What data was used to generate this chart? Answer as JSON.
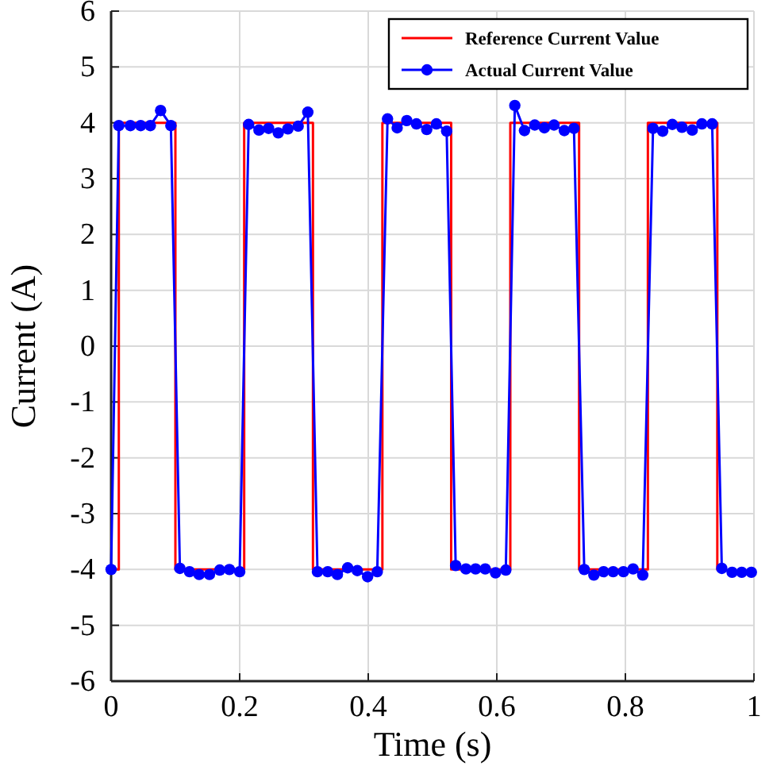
{
  "chart_data": {
    "type": "line",
    "xlabel": "Time (s)",
    "ylabel": "Current (A)",
    "xlim": [
      0,
      1
    ],
    "ylim": [
      -6,
      6
    ],
    "xticks": [
      0,
      0.2,
      0.4,
      0.6,
      0.8,
      1
    ],
    "yticks": [
      -6,
      -5,
      -4,
      -3,
      -2,
      -1,
      0,
      1,
      2,
      3,
      4,
      5,
      6
    ],
    "grid": true,
    "legend": "top right",
    "series": [
      {
        "name": "Reference Current Value",
        "color": "#ff0000",
        "marker": "none",
        "x": [
          0,
          0.012,
          0.012,
          0.1,
          0.1,
          0.207,
          0.207,
          0.314,
          0.314,
          0.422,
          0.422,
          0.529,
          0.529,
          0.621,
          0.621,
          0.728,
          0.728,
          0.835,
          0.835,
          0.943,
          0.943
        ],
        "values": [
          -4,
          -4,
          4,
          4,
          -4,
          -4,
          4,
          4,
          -4,
          -4,
          4,
          4,
          -4,
          -4,
          4,
          4,
          -4,
          -4,
          4,
          4,
          -4
        ]
      },
      {
        "name": "Actual Current Value",
        "color": "#0000ff",
        "marker": "circle",
        "x": [
          0,
          0.012,
          0.03,
          0.046,
          0.061,
          0.077,
          0.093,
          0.107,
          0.122,
          0.137,
          0.153,
          0.169,
          0.184,
          0.2,
          0.214,
          0.23,
          0.245,
          0.26,
          0.275,
          0.291,
          0.306,
          0.321,
          0.337,
          0.352,
          0.368,
          0.383,
          0.399,
          0.414,
          0.43,
          0.445,
          0.46,
          0.475,
          0.491,
          0.506,
          0.522,
          0.536,
          0.552,
          0.567,
          0.582,
          0.598,
          0.614,
          0.628,
          0.643,
          0.659,
          0.674,
          0.689,
          0.705,
          0.72,
          0.736,
          0.751,
          0.766,
          0.781,
          0.797,
          0.812,
          0.827,
          0.843,
          0.858,
          0.873,
          0.888,
          0.904,
          0.919,
          0.935,
          0.95,
          0.966,
          0.981,
          0.996
        ],
        "values": [
          -4,
          3.95,
          3.95,
          3.95,
          3.95,
          4.22,
          3.95,
          -3.98,
          -4.04,
          -4.09,
          -4.09,
          -4.01,
          -4,
          -4.04,
          3.97,
          3.87,
          3.9,
          3.82,
          3.89,
          3.94,
          4.19,
          -4.04,
          -4.04,
          -4.09,
          -3.97,
          -4.02,
          -4.13,
          -4.04,
          4.07,
          3.91,
          4.04,
          3.98,
          3.88,
          3.98,
          3.85,
          -3.93,
          -3.99,
          -3.99,
          -3.99,
          -4.06,
          -4.01,
          4.31,
          3.86,
          3.96,
          3.91,
          3.96,
          3.86,
          3.9,
          -4,
          -4.1,
          -4.04,
          -4.04,
          -4.04,
          -3.99,
          -4.1,
          3.9,
          3.85,
          3.97,
          3.92,
          3.87,
          3.98,
          3.98,
          -3.98,
          -4.05,
          -4.05,
          -4.05
        ]
      }
    ]
  }
}
